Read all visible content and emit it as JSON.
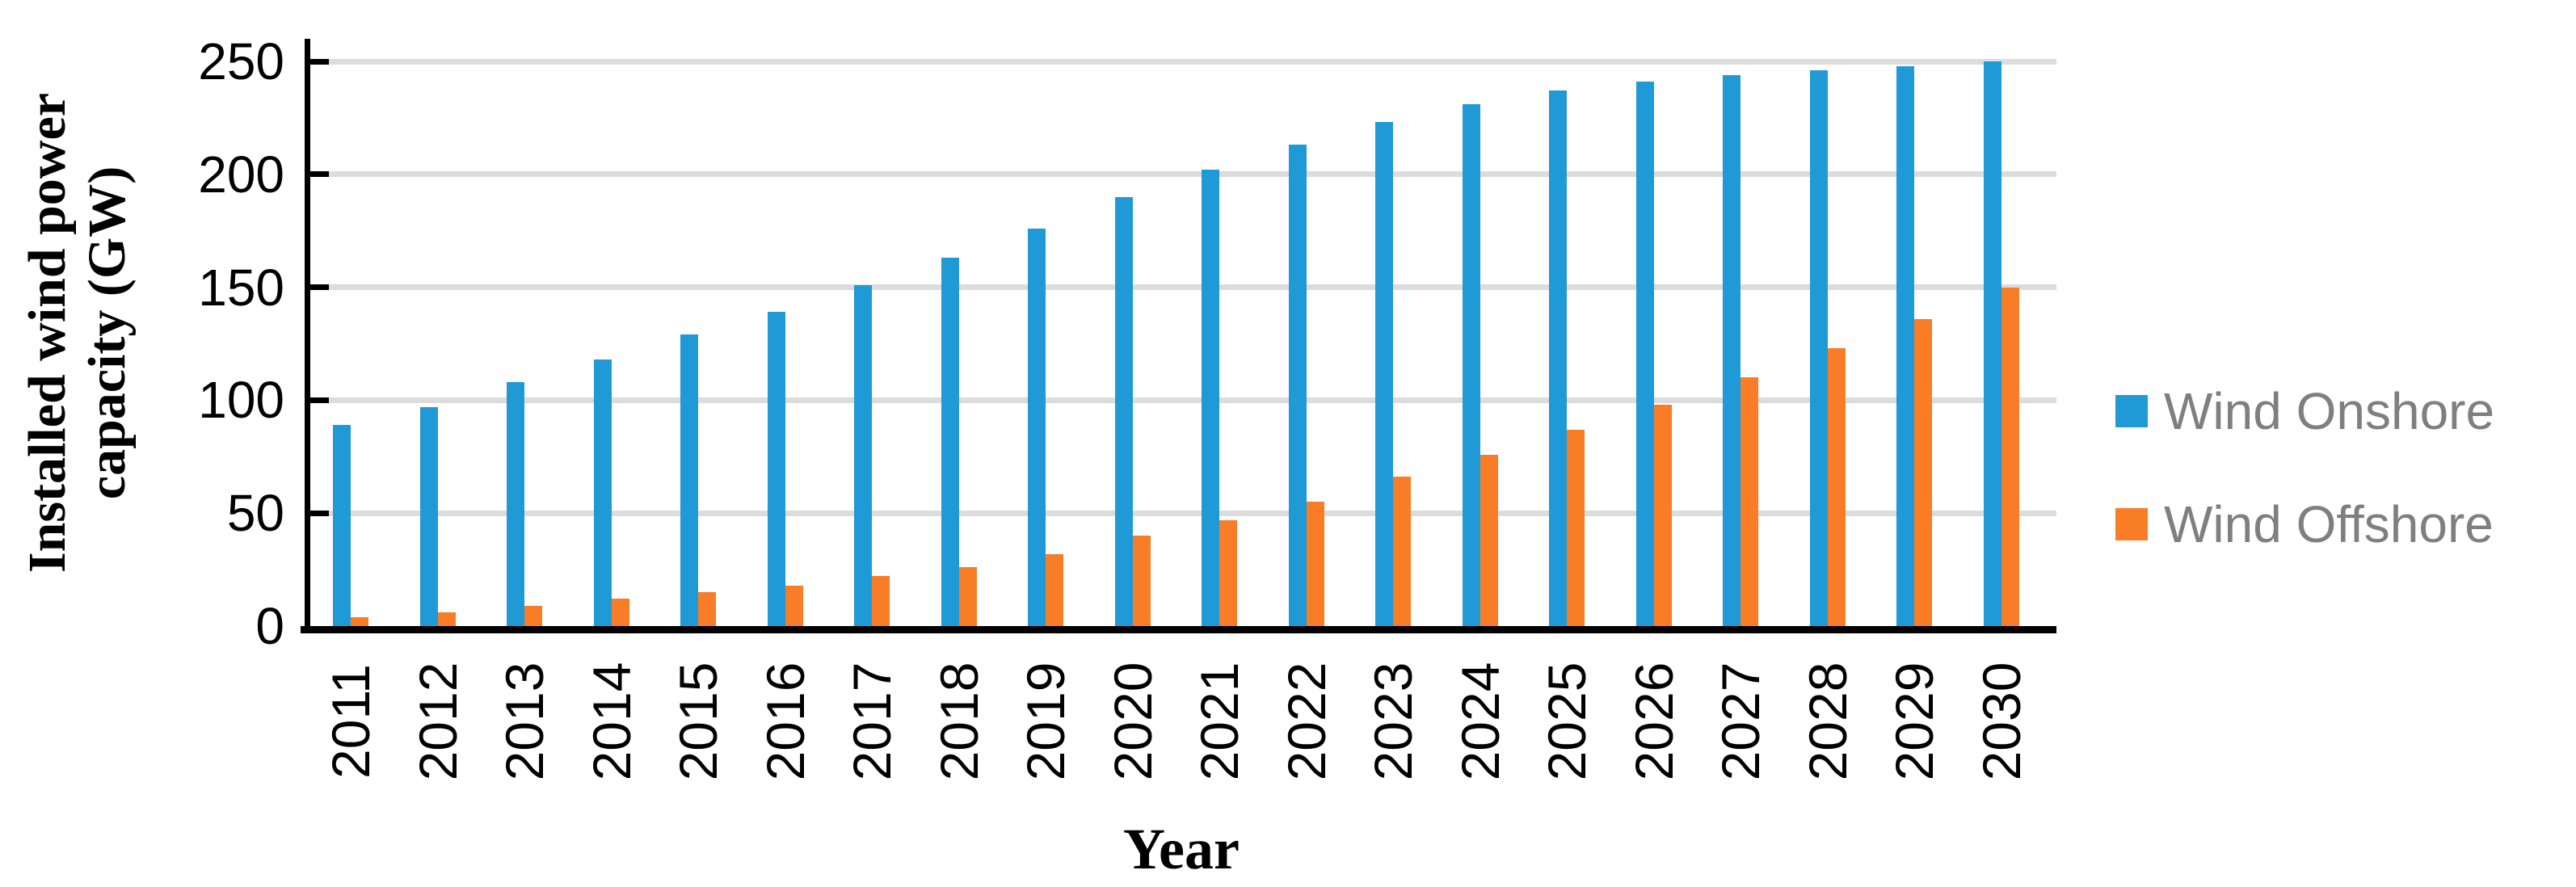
{
  "chart_data": {
    "type": "bar",
    "title": "",
    "xlabel": "Year",
    "ylabel": "Installed wind power capacity (GW)",
    "ylabel_lines": [
      "Installed wind power",
      "capacity (GW)"
    ],
    "categories": [
      "2011",
      "2012",
      "2013",
      "2014",
      "2015",
      "2016",
      "2017",
      "2018",
      "2019",
      "2020",
      "2021",
      "2022",
      "2023",
      "2024",
      "2025",
      "2026",
      "2027",
      "2028",
      "2029",
      "2030"
    ],
    "series": [
      {
        "name": "Wind Onshore",
        "color": "#1F9AD7",
        "values": [
          89,
          97,
          108,
          118,
          129,
          139,
          151,
          163,
          176,
          190,
          202,
          213,
          223,
          231,
          237,
          241,
          244,
          246,
          248,
          250
        ]
      },
      {
        "name": "Wind Offshore",
        "color": "#F97D26",
        "values": [
          4,
          6,
          9,
          12,
          15,
          18,
          22,
          26,
          32,
          40,
          47,
          55,
          66,
          76,
          87,
          98,
          110,
          123,
          136,
          150
        ]
      }
    ],
    "ylim": [
      0,
      250
    ],
    "ytick_interval": 50,
    "yticks": [
      0,
      50,
      100,
      150,
      200,
      250
    ],
    "grid": true,
    "gridline_color": "#DCDCDC",
    "axis_color": "#000000",
    "legend_position": "right",
    "legend_text_color": "#7F7F7F"
  },
  "legend": {
    "items": [
      {
        "label": "Wind Onshore",
        "color": "#1F9AD7"
      },
      {
        "label": "Wind Offshore",
        "color": "#F97D26"
      }
    ]
  }
}
